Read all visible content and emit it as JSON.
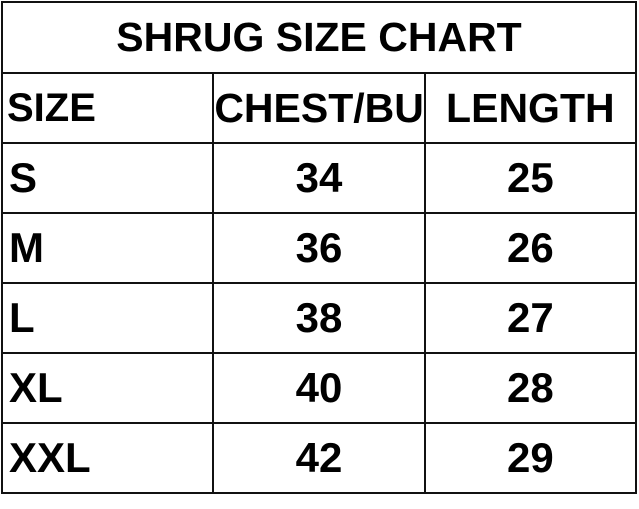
{
  "title": "SHRUG SIZE CHART",
  "columns": [
    "SIZE",
    "CHEST/BUST",
    "LENGTH"
  ],
  "rows": [
    {
      "size": "S",
      "chest": "34",
      "length": "25"
    },
    {
      "size": "M",
      "chest": "36",
      "length": "26"
    },
    {
      "size": "L",
      "chest": "38",
      "length": "27"
    },
    {
      "size": "XL",
      "chest": "40",
      "length": "28"
    },
    {
      "size": "XXL",
      "chest": "42",
      "length": "29"
    }
  ]
}
